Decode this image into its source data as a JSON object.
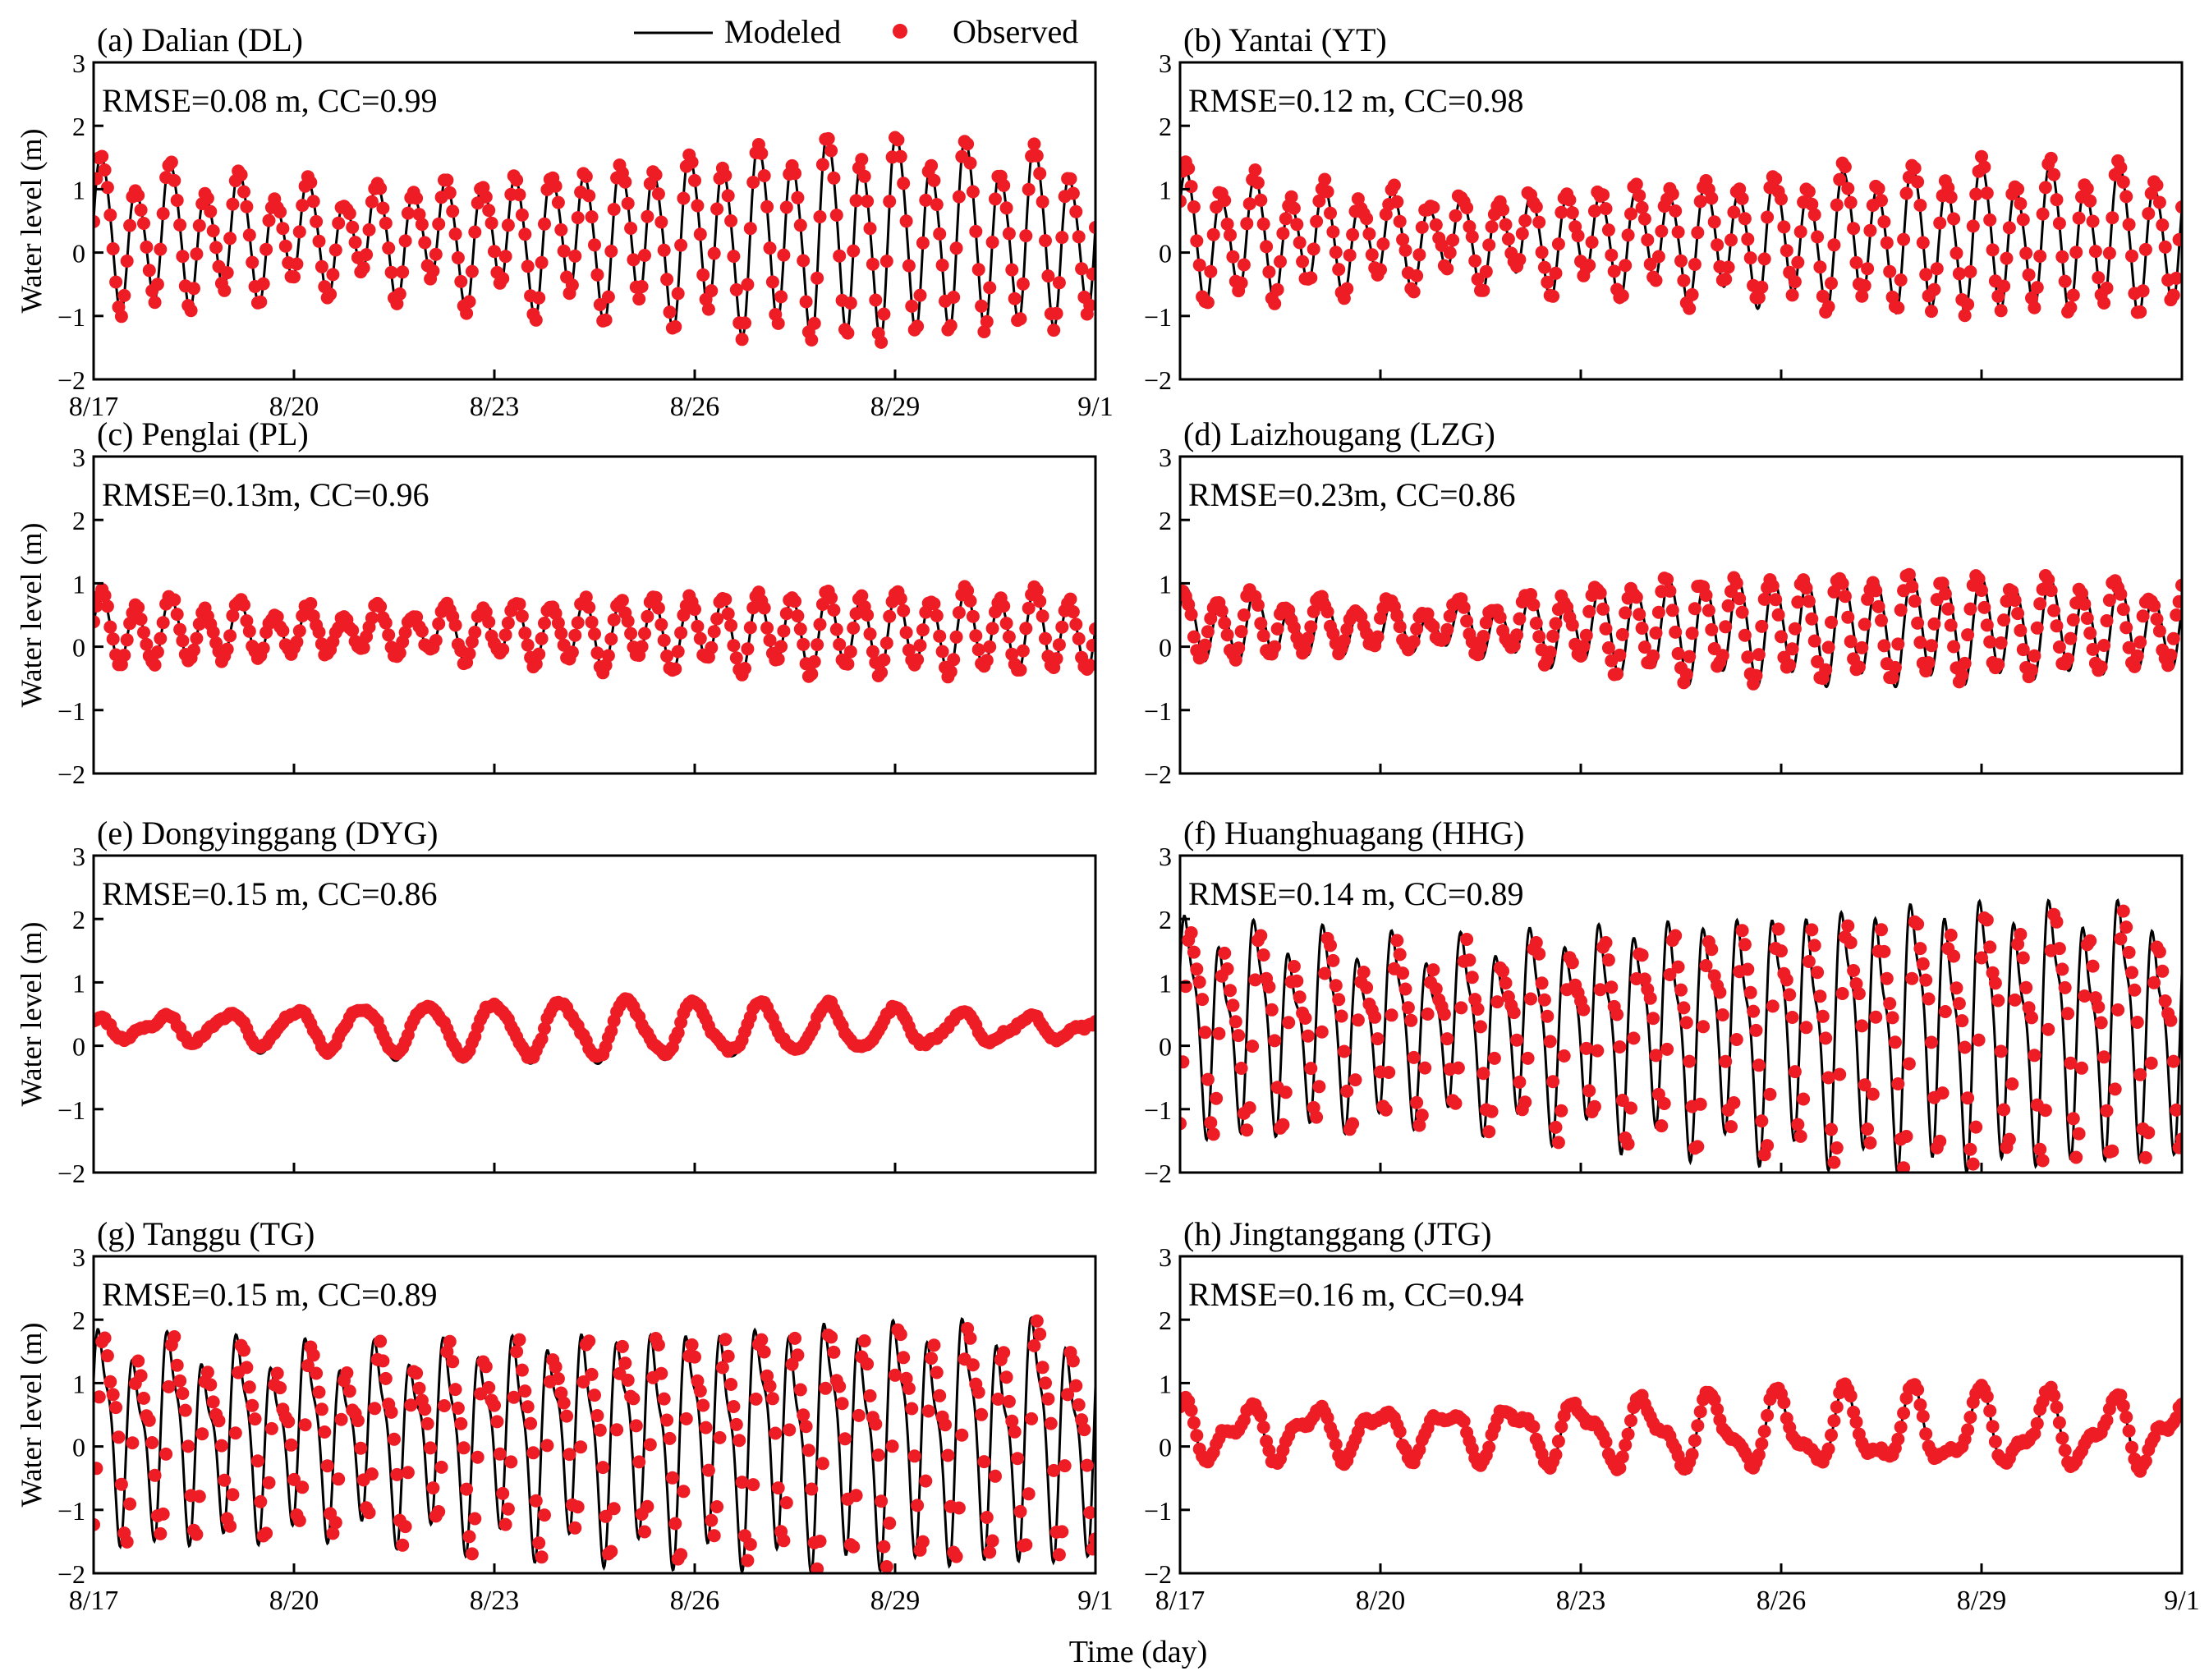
{
  "figure": {
    "xlabel": "Time (day)",
    "legend": {
      "modeled_label": "Modeled",
      "observed_label": "Observed",
      "placement": "top-center"
    },
    "colors": {
      "modeled": "#000000",
      "observed": "#ee1c24",
      "axes": "#000000"
    }
  },
  "chart_data": [
    {
      "type": "line",
      "panel": "a",
      "title": "(a) Dalian (DL)",
      "annotation": "RMSE=0.08 m, CC=0.99",
      "ylabel": "Water level (m)",
      "ylim": [
        -2,
        3
      ],
      "yticks": [
        -2,
        -1,
        0,
        1,
        2,
        3
      ],
      "xlim": [
        0,
        15
      ],
      "xticks": [
        0,
        3,
        6,
        9,
        12,
        15
      ],
      "xtick_labels": [
        "8/17",
        "8/20",
        "8/23",
        "8/26",
        "8/29",
        "9/1"
      ],
      "series": [
        {
          "name": "Modeled",
          "style": "line",
          "model": {
            "mean": 0.25,
            "m2_amp": [
              1.1,
              0.7,
              1.05,
              1.5,
              1.2
            ],
            "k1_amp": 0.25,
            "k1_phase": 0.9,
            "phase": 0.0,
            "skew": 0.12
          }
        },
        {
          "name": "Observed",
          "style": "markers",
          "model": {
            "offset": 0.0,
            "scale": 1.0,
            "noise": 0.05,
            "phase_lag": 0.0
          }
        }
      ]
    },
    {
      "type": "line",
      "panel": "b",
      "title": "(b) Yantai (YT)",
      "annotation": "RMSE=0.12 m, CC=0.98",
      "ylabel": "",
      "ylim": [
        -2,
        3
      ],
      "yticks": [
        -2,
        -1,
        0,
        1,
        2,
        3
      ],
      "xlim": [
        0,
        15
      ],
      "xticks": [
        0,
        3,
        6,
        9,
        12,
        15
      ],
      "xtick_labels": [
        "",
        "",
        "",
        "",
        "",
        ""
      ],
      "series": [
        {
          "name": "Modeled",
          "style": "line",
          "model": {
            "mean": 0.2,
            "m2_amp": [
              0.95,
              0.6,
              0.8,
              1.05,
              1.05
            ],
            "k1_amp": 0.2,
            "k1_phase": 1.2,
            "phase": 0.3,
            "skew": 0.1
          }
        },
        {
          "name": "Observed",
          "style": "markers",
          "model": {
            "offset": 0.05,
            "scale": 1.0,
            "noise": 0.1,
            "phase_lag": 0.0
          }
        }
      ]
    },
    {
      "type": "line",
      "panel": "c",
      "title": "(c) Penglai (PL)",
      "annotation": "RMSE=0.13m, CC=0.96",
      "ylabel": "Water level (m)",
      "ylim": [
        -2,
        3
      ],
      "yticks": [
        -2,
        -1,
        0,
        1,
        2,
        3
      ],
      "xlim": [
        0,
        15
      ],
      "xticks": [
        0,
        3,
        6,
        9,
        12,
        15
      ],
      "xtick_labels": [
        "",
        "",
        "",
        "",
        "",
        ""
      ],
      "series": [
        {
          "name": "Modeled",
          "style": "line",
          "model": {
            "mean": 0.22,
            "m2_amp": [
              0.55,
              0.3,
              0.5,
              0.6,
              0.6
            ],
            "k1_amp": 0.1,
            "k1_phase": 0.4,
            "phase": 0.1,
            "skew": 0.05
          }
        },
        {
          "name": "Observed",
          "style": "markers",
          "model": {
            "offset": 0.02,
            "scale": 1.0,
            "noise": 0.05,
            "phase_lag": 0.0
          }
        }
      ]
    },
    {
      "type": "line",
      "panel": "d",
      "title": "(d) Laizhougang (LZG)",
      "annotation": "RMSE=0.23m, CC=0.86",
      "ylabel": "",
      "ylim": [
        -2,
        3
      ],
      "yticks": [
        -2,
        -1,
        0,
        1,
        2,
        3
      ],
      "xlim": [
        0,
        15
      ],
      "xticks": [
        0,
        3,
        6,
        9,
        12,
        15
      ],
      "xtick_labels": [
        "",
        "",
        "",
        "",
        "",
        ""
      ],
      "series": [
        {
          "name": "Modeled",
          "style": "line",
          "model": {
            "mean": 0.3,
            "m2_amp": [
              0.55,
              0.3,
              0.75,
              0.8,
              0.6
            ],
            "k1_amp": 0.12,
            "k1_phase": 0.6,
            "phase": 0.4,
            "skew": 0.08
          }
        },
        {
          "name": "Observed",
          "style": "markers",
          "model": {
            "offset": 0.05,
            "scale": 0.95,
            "noise": 0.06,
            "phase_lag": -0.06
          }
        }
      ]
    },
    {
      "type": "line",
      "panel": "e",
      "title": "(e) Dongyinggang (DYG)",
      "annotation": "RMSE=0.15 m, CC=0.86",
      "ylabel": "Water level (m)",
      "ylim": [
        -2,
        3
      ],
      "yticks": [
        -2,
        -1,
        0,
        1,
        2,
        3
      ],
      "xlim": [
        0,
        15
      ],
      "xticks": [
        0,
        3,
        6,
        9,
        12,
        15
      ],
      "xtick_labels": [
        "",
        "",
        "",
        "",
        "",
        ""
      ],
      "series": [
        {
          "name": "Modeled",
          "style": "line",
          "model": {
            "mean": 0.22,
            "m2_amp": [
              0.08,
              0.05,
              0.08,
              0.06,
              0.07
            ],
            "k1_amp": [
              0.12,
              0.38,
              0.48,
              0.38,
              0.12
            ],
            "k1_phase": 1.4,
            "phase": 0.0,
            "skew": 0.0
          }
        },
        {
          "name": "Observed",
          "style": "markers",
          "model": {
            "offset": 0.08,
            "scale": 0.9,
            "noise": 0.03,
            "phase_lag": 0.0
          }
        }
      ]
    },
    {
      "type": "line",
      "panel": "f",
      "title": "(f) Huanghuagang (HHG)",
      "annotation": "RMSE=0.14 m, CC=0.89",
      "ylabel": "",
      "ylim": [
        -2,
        3
      ],
      "yticks": [
        -2,
        -1,
        0,
        1,
        2,
        3
      ],
      "xlim": [
        0,
        15
      ],
      "xticks": [
        0,
        3,
        6,
        9,
        12,
        15
      ],
      "xtick_labels": [
        "",
        "",
        "",
        "",
        "",
        ""
      ],
      "series": [
        {
          "name": "Modeled",
          "style": "line",
          "model": {
            "mean": 0.35,
            "m2_amp": [
              1.45,
              1.15,
              1.5,
              1.75,
              1.65
            ],
            "k1_amp": 0.25,
            "k1_phase": 0.7,
            "phase": 0.2,
            "skew": 0.35
          }
        },
        {
          "name": "Observed",
          "style": "markers",
          "model": {
            "offset": -0.05,
            "scale": 0.93,
            "noise": 0.07,
            "phase_lag": 0.09
          }
        }
      ]
    },
    {
      "type": "line",
      "panel": "g",
      "title": "(g) Tanggu (TG)",
      "annotation": "RMSE=0.15 m, CC=0.89",
      "ylabel": "Water level (m)",
      "ylim": [
        -2,
        3
      ],
      "yticks": [
        -2,
        -1,
        0,
        1,
        2,
        3
      ],
      "xlim": [
        0,
        15
      ],
      "xticks": [
        0,
        3,
        6,
        9,
        12,
        15
      ],
      "xtick_labels": [
        "8/17",
        "8/20",
        "8/23",
        "8/26",
        "8/29",
        "9/1"
      ],
      "series": [
        {
          "name": "Modeled",
          "style": "line",
          "model": {
            "mean": 0.2,
            "m2_amp": [
              1.4,
              1.2,
              1.45,
              1.6,
              1.55
            ],
            "k1_amp": 0.25,
            "k1_phase": 0.7,
            "phase": 0.2,
            "skew": 0.35
          }
        },
        {
          "name": "Observed",
          "style": "markers",
          "model": {
            "offset": 0.0,
            "scale": 0.95,
            "noise": 0.07,
            "phase_lag": 0.09
          }
        }
      ]
    },
    {
      "type": "line",
      "panel": "h",
      "title": "(h) Jingtanggang (JTG)",
      "annotation": "RMSE=0.16 m, CC=0.94",
      "ylabel": "",
      "ylim": [
        -2,
        3
      ],
      "yticks": [
        -2,
        -1,
        0,
        1,
        2,
        3
      ],
      "xlim": [
        0,
        15
      ],
      "xticks": [
        0,
        3,
        6,
        9,
        12,
        15
      ],
      "xtick_labels": [
        "8/17",
        "8/20",
        "8/23",
        "8/26",
        "8/29",
        "9/1"
      ],
      "series": [
        {
          "name": "Modeled",
          "style": "line",
          "model": {
            "mean": 0.2,
            "m2_amp": [
              0.25,
              0.15,
              0.25,
              0.25,
              0.25
            ],
            "k1_amp": [
              0.35,
              0.35,
              0.5,
              0.55,
              0.45
            ],
            "k1_phase": 1.6,
            "phase": 0.3,
            "skew": 0.0
          }
        },
        {
          "name": "Observed",
          "style": "markers",
          "model": {
            "offset": 0.05,
            "scale": 0.95,
            "noise": 0.04,
            "phase_lag": 0.0
          }
        }
      ]
    }
  ]
}
